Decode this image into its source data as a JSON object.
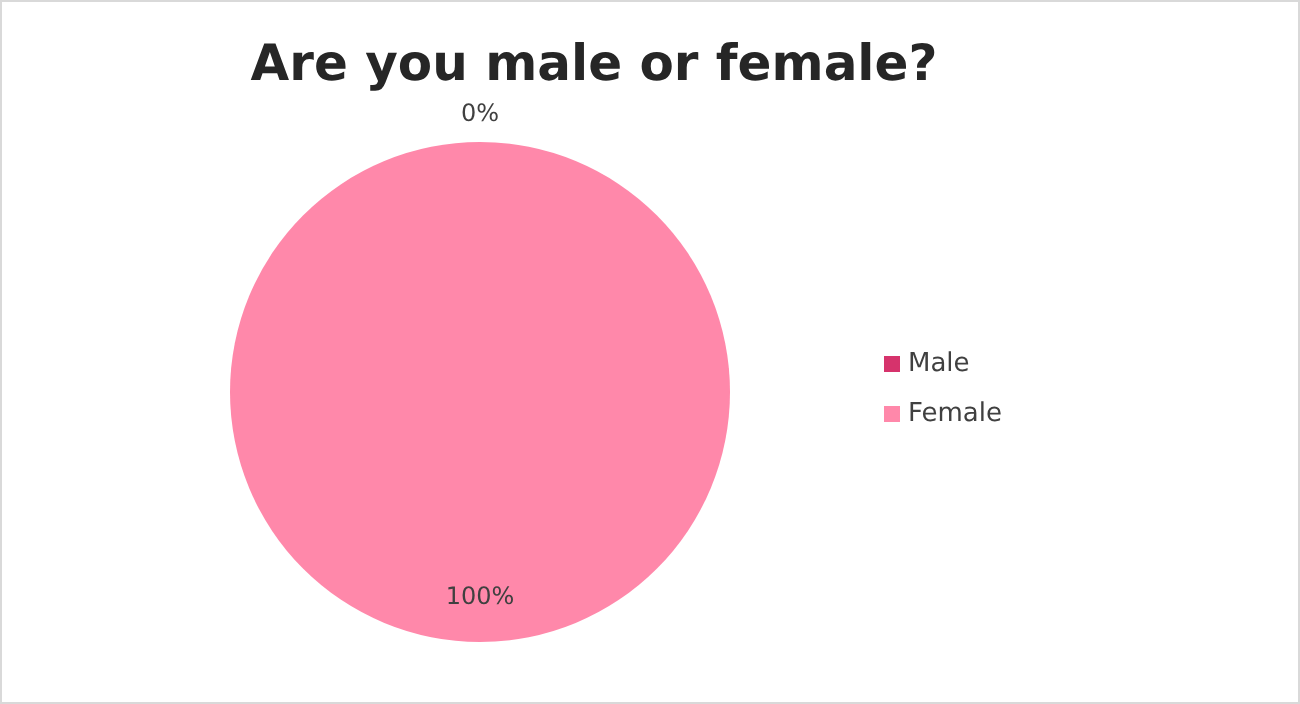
{
  "chart_data": {
    "type": "pie",
    "title": "Are you male or female?",
    "categories": [
      "Male",
      "Female"
    ],
    "values": [
      0,
      100
    ],
    "colors": [
      "#d6336c",
      "#ff88aa"
    ],
    "value_labels": [
      "0%",
      "100%"
    ],
    "legend": "right"
  }
}
